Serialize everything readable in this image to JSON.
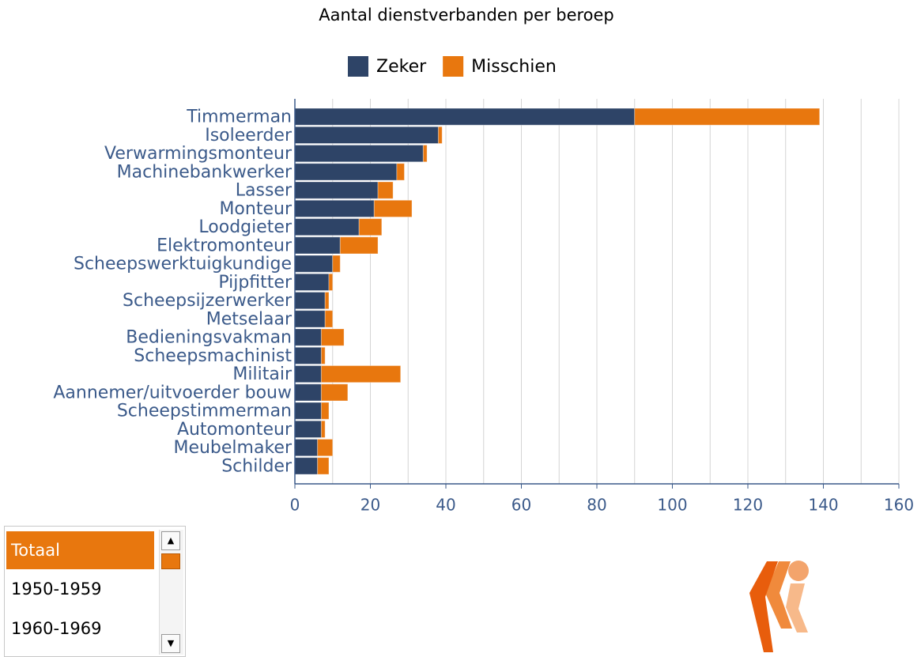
{
  "chart_data": {
    "type": "stacked_barh",
    "title": "Aantal dienstverbanden per beroep",
    "categories": [
      "Timmerman",
      "Isoleerder",
      "Verwarmingsmonteur",
      "Machinebankwerker",
      "Lasser",
      "Monteur",
      "Loodgieter",
      "Elektromonteur",
      "Scheepswerktuigkundige",
      "Pijpfitter",
      "Scheepsijzerwerker",
      "Metselaar",
      "Bedieningsvakman",
      "Scheepsmachinist",
      "Militair",
      "Aannemer/uitvoerder bouw",
      "Scheepstimmerman",
      "Automonteur",
      "Meubelmaker",
      "Schilder"
    ],
    "series": [
      {
        "name": "Zeker",
        "color": "#2e4467",
        "values": [
          90,
          38,
          34,
          27,
          22,
          21,
          17,
          12,
          10,
          9,
          8,
          8,
          7,
          7,
          7,
          7,
          7,
          7,
          6,
          6
        ]
      },
      {
        "name": "Misschien",
        "color": "#e8770e",
        "values": [
          49,
          1,
          1,
          2,
          4,
          10,
          6,
          10,
          2,
          1,
          1,
          2,
          6,
          1,
          21,
          7,
          2,
          1,
          4,
          3
        ]
      }
    ],
    "xlim": [
      0,
      160
    ],
    "xticks": [
      0,
      20,
      40,
      60,
      80,
      100,
      120,
      140,
      160
    ],
    "xgrid": [
      10,
      20,
      30,
      40,
      50,
      60,
      70,
      80,
      90,
      100,
      110,
      120,
      130,
      140,
      150,
      160
    ],
    "legend": "top"
  },
  "listbox": {
    "items": [
      "Totaal",
      "1950-1959",
      "1960-1969"
    ]
  }
}
